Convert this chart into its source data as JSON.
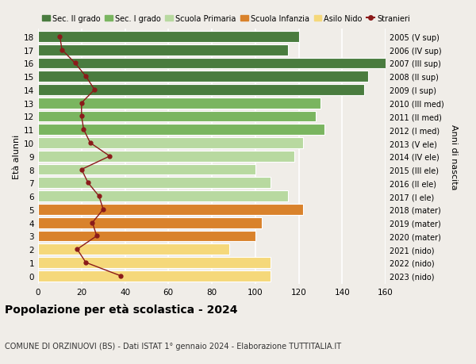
{
  "ages": [
    18,
    17,
    16,
    15,
    14,
    13,
    12,
    11,
    10,
    9,
    8,
    7,
    6,
    5,
    4,
    3,
    2,
    1,
    0
  ],
  "right_labels": [
    "2005 (V sup)",
    "2006 (IV sup)",
    "2007 (III sup)",
    "2008 (II sup)",
    "2009 (I sup)",
    "2010 (III med)",
    "2011 (II med)",
    "2012 (I med)",
    "2013 (V ele)",
    "2014 (IV ele)",
    "2015 (III ele)",
    "2016 (II ele)",
    "2017 (I ele)",
    "2018 (mater)",
    "2019 (mater)",
    "2020 (mater)",
    "2021 (nido)",
    "2022 (nido)",
    "2023 (nido)"
  ],
  "bar_values": [
    120,
    115,
    163,
    152,
    150,
    130,
    128,
    132,
    122,
    118,
    100,
    107,
    115,
    122,
    103,
    100,
    88,
    107,
    107
  ],
  "bar_colors": [
    "#4a7c3f",
    "#4a7c3f",
    "#4a7c3f",
    "#4a7c3f",
    "#4a7c3f",
    "#7ab560",
    "#7ab560",
    "#7ab560",
    "#b8d9a0",
    "#b8d9a0",
    "#b8d9a0",
    "#b8d9a0",
    "#b8d9a0",
    "#d9822b",
    "#d9822b",
    "#d9822b",
    "#f5d87a",
    "#f5d87a",
    "#f5d87a"
  ],
  "stranieri_values": [
    10,
    11,
    17,
    22,
    26,
    20,
    20,
    21,
    24,
    33,
    20,
    23,
    28,
    30,
    25,
    27,
    18,
    22,
    38
  ],
  "title": "Popolazione per età scolastica - 2024",
  "subtitle": "COMUNE DI ORZINUOVI (BS) - Dati ISTAT 1° gennaio 2024 - Elaborazione TUTTITALIA.IT",
  "ylabel_left": "Età alunni",
  "ylabel_right": "Anni di nascita",
  "xlim_max": 160,
  "xticks": [
    0,
    20,
    40,
    60,
    80,
    100,
    120,
    140,
    160
  ],
  "legend_labels": [
    "Sec. II grado",
    "Sec. I grado",
    "Scuola Primaria",
    "Scuola Infanzia",
    "Asilo Nido",
    "Stranieri"
  ],
  "legend_colors": [
    "#4a7c3f",
    "#7ab560",
    "#b8d9a0",
    "#d9822b",
    "#f5d87a",
    "#b22222"
  ],
  "bar_height": 0.82,
  "bg_color": "#f0ede8",
  "grid_color": "#ffffff",
  "stranieri_line_color": "#8b1a1a",
  "stranieri_dot_color": "#8b1a1a"
}
